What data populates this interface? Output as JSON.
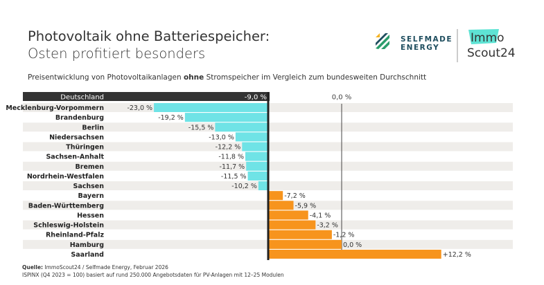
{
  "header": {
    "title": "Photovoltaik ohne Batteriespeicher:",
    "subtitle": "Osten profitiert besonders",
    "description_pre": "Preisentwicklung von Photovoltaikanlagen ",
    "description_bold": "ohne",
    "description_post": " Stromspeicher im Vergleich zum bundesweiten Durchschnitt"
  },
  "logos": {
    "selfmade_line1": "SELFMADE",
    "selfmade_line2": "ENERGY",
    "immo": "Immo",
    "scout": "Scout24"
  },
  "footer": {
    "source_label": "Quelle:",
    "source": " ImmoScout24 / Selfmade Energy, Februar 2026",
    "note": "ISPINX (Q4 2023 = 100) basiert auf rund 250.000 Angebotsdaten für PV-Anlagen mit 12–25 Modulen"
  },
  "chart_data": {
    "type": "bar",
    "orientation": "horizontal",
    "reference": {
      "label": "Deutschland",
      "value": -9.0,
      "value_label": "-9,0 %"
    },
    "zero_label": "0,0 %",
    "colors": {
      "below": "#6fe3e6",
      "above": "#f7941d",
      "reference": "#333333"
    },
    "categories": [
      "Mecklenburg-Vorpommern",
      "Brandenburg",
      "Berlin",
      "Niedersachsen",
      "Thüringen",
      "Sachsen-Anhalt",
      "Bremen",
      "Nordrhein-Westfalen",
      "Sachsen",
      "Bayern",
      "Baden-Württemberg",
      "Hessen",
      "Schleswig-Holstein",
      "Rheinland-Pfalz",
      "Hamburg",
      "Saarland"
    ],
    "values": [
      -23.0,
      -19.2,
      -15.5,
      -13.0,
      -12.2,
      -11.8,
      -11.7,
      -11.5,
      -10.2,
      -7.2,
      -5.9,
      -4.1,
      -3.2,
      -1.2,
      0.0,
      12.2
    ],
    "labels": [
      "-23,0 %",
      "-19,2 %",
      "-15,5 %",
      "-13,0 %",
      "-12,2 %",
      "-11,8 %",
      "-11,7 %",
      "-11,5 %",
      "-10,2 %",
      "-7,2 %",
      "-5,9 %",
      "-4,1 %",
      "-3,2 %",
      "-1,2 %",
      "0,0 %",
      "+12,2 %"
    ]
  }
}
